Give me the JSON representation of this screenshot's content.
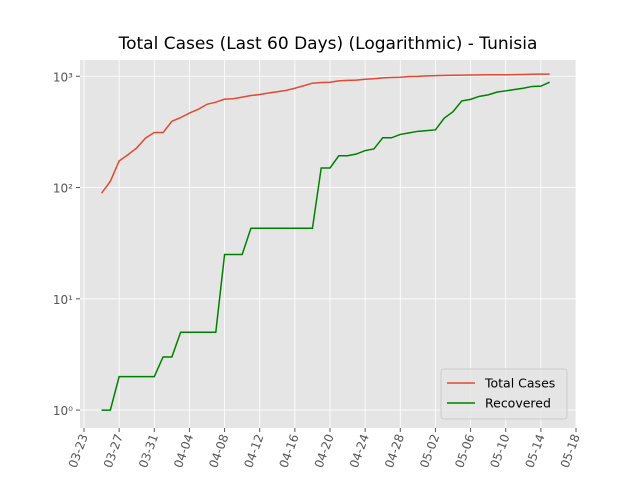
{
  "chart_data": {
    "type": "line",
    "title": "Total Cases (Last 60 Days) (Logarithmic) - Tunisia",
    "x": [
      "03-25",
      "03-26",
      "03-27",
      "03-28",
      "03-29",
      "03-30",
      "03-31",
      "04-01",
      "04-02",
      "04-03",
      "04-04",
      "04-05",
      "04-06",
      "04-07",
      "04-08",
      "04-09",
      "04-10",
      "04-11",
      "04-12",
      "04-13",
      "04-14",
      "04-15",
      "04-16",
      "04-17",
      "04-18",
      "04-19",
      "04-20",
      "04-21",
      "04-22",
      "04-23",
      "04-24",
      "04-25",
      "04-26",
      "04-27",
      "04-28",
      "04-29",
      "04-30",
      "05-01",
      "05-02",
      "05-03",
      "05-04",
      "05-05",
      "05-06",
      "05-07",
      "05-08",
      "05-09",
      "05-10",
      "05-11",
      "05-12",
      "05-13",
      "05-14",
      "05-15"
    ],
    "series": [
      {
        "name": "Total Cases",
        "color": "#E24A33",
        "values": [
          89,
          114,
          173,
          197,
          227,
          278,
          312,
          312,
          394,
          425,
          467,
          505,
          560,
          585,
          623,
          628,
          650,
          671,
          685,
          707,
          726,
          747,
          780,
          822,
          866,
          879,
          884,
          909,
          918,
          922,
          939,
          949,
          967,
          975,
          980,
          994,
          998,
          1009,
          1013,
          1018,
          1022,
          1025,
          1026,
          1030,
          1032,
          1032,
          1032,
          1035,
          1037,
          1043,
          1044,
          1045
        ]
      },
      {
        "name": "Recovered",
        "color": "#008000",
        "values": [
          1,
          1,
          2,
          2,
          2,
          2,
          2,
          3,
          3,
          5,
          5,
          5,
          5,
          5,
          25,
          25,
          25,
          43,
          43,
          43,
          43,
          43,
          43,
          43,
          43,
          150,
          150,
          193,
          193,
          200,
          215,
          222,
          280,
          280,
          300,
          310,
          320,
          325,
          330,
          420,
          480,
          600,
          620,
          660,
          680,
          720,
          740,
          760,
          780,
          810,
          815,
          885
        ]
      }
    ],
    "xlim": [
      "03-23",
      "05-18"
    ],
    "xticks": [
      "03-23",
      "03-27",
      "03-31",
      "04-04",
      "04-08",
      "04-12",
      "04-16",
      "04-20",
      "04-24",
      "04-28",
      "05-02",
      "05-06",
      "05-10",
      "05-14",
      "05-18"
    ],
    "ylim": [
      0.69,
      1400
    ],
    "log_y": true,
    "yticks": [
      {
        "value": 1,
        "label": "10⁰"
      },
      {
        "value": 10,
        "label": "10¹"
      },
      {
        "value": 100,
        "label": "10²"
      },
      {
        "value": 1000,
        "label": "10³"
      }
    ],
    "grid": true,
    "legend": "lower right"
  }
}
